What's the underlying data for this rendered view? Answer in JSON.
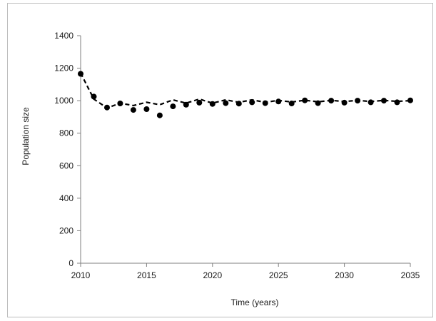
{
  "chart_data": {
    "type": "scatter",
    "title": "",
    "xlabel": "Time (years)",
    "ylabel": "Population size",
    "xlim": [
      2010,
      2035
    ],
    "ylim": [
      0,
      1400
    ],
    "x_ticks": [
      2010,
      2015,
      2020,
      2025,
      2030,
      2035
    ],
    "y_ticks": [
      0,
      200,
      400,
      600,
      800,
      1000,
      1200,
      1400
    ],
    "grid": false,
    "legend": "none",
    "series": [
      {
        "style": "markers",
        "color": "#000000",
        "x": [
          2010,
          2011,
          2012,
          2013,
          2014,
          2015,
          2016,
          2017,
          2018,
          2019,
          2020,
          2021,
          2022,
          2023,
          2024,
          2025,
          2026,
          2027,
          2028,
          2029,
          2030,
          2031,
          2032,
          2033,
          2034,
          2035
        ],
        "y": [
          1165,
          1025,
          958,
          983,
          943,
          948,
          910,
          965,
          975,
          988,
          980,
          985,
          982,
          990,
          985,
          995,
          983,
          1002,
          985,
          1000,
          988,
          1000,
          990,
          1000,
          990,
          1002
        ]
      },
      {
        "style": "dashed-line",
        "color": "#000000",
        "x": [
          2010,
          2011,
          2012,
          2013,
          2014,
          2015,
          2016,
          2017,
          2018,
          2019,
          2020,
          2021,
          2022,
          2023,
          2024,
          2025,
          2026,
          2027,
          2028,
          2029,
          2030,
          2031,
          2032,
          2033,
          2034,
          2035
        ],
        "y": [
          1170,
          1010,
          955,
          985,
          970,
          990,
          975,
          1005,
          985,
          1010,
          985,
          1005,
          990,
          1005,
          990,
          1002,
          992,
          1003,
          993,
          1002,
          995,
          1002,
          995,
          1002,
          996,
          1000
        ]
      }
    ]
  }
}
